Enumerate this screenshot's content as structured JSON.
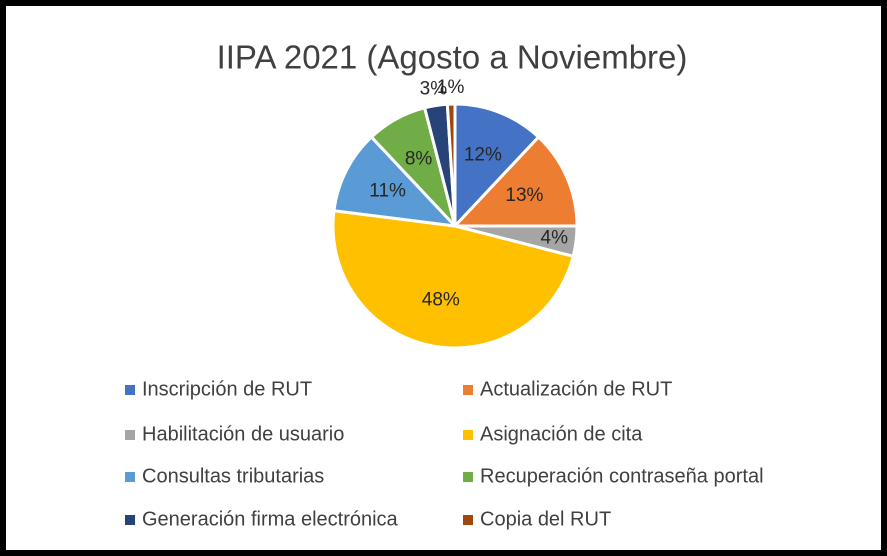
{
  "chart_data": {
    "type": "pie",
    "title": "IIPA 2021 (Agosto a Noviembre)",
    "categories": [
      "Inscripción de RUT",
      "Actualización de RUT",
      "Habilitación de usuario",
      "Asignación de cita",
      "Consultas tributarias",
      "Recuperación contraseña portal",
      "Generación firma electrónica",
      "Copia del RUT"
    ],
    "values": [
      12,
      13,
      4,
      48,
      11,
      8,
      3,
      1
    ],
    "value_labels": [
      "12%",
      "13%",
      "4%",
      "48%",
      "11%",
      "8%",
      "3%",
      "1%"
    ],
    "colors": [
      "#4472c4",
      "#ed7d31",
      "#a5a5a5",
      "#ffc000",
      "#5b9bd5",
      "#70ad47",
      "#264478",
      "#9e480e"
    ],
    "legend": "bottom"
  }
}
